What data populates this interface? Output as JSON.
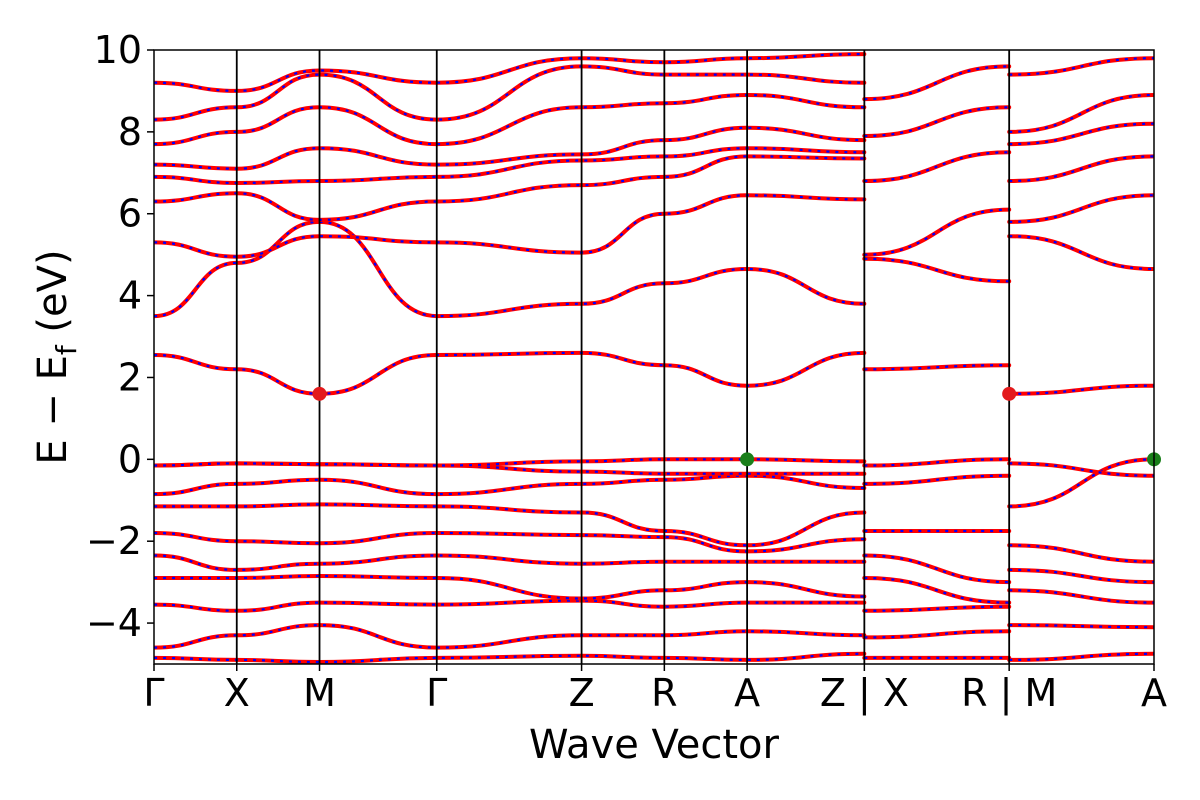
{
  "chart_data": {
    "type": "line",
    "title": "",
    "xlabel": "Wave Vector",
    "ylabel_main": "E − E",
    "ylabel_sub": "f",
    "ylabel_unit": " (eV)",
    "ylim": [
      -5,
      10
    ],
    "yticks": [
      -4,
      -2,
      0,
      2,
      4,
      6,
      8,
      10
    ],
    "ytick_labels": [
      "−4",
      "−2",
      "0",
      "2",
      "4",
      "6",
      "8",
      "10"
    ],
    "kpath": [
      0,
      0.6,
      1.2,
      2.05,
      3.1,
      3.7,
      4.3,
      5.15,
      5.15,
      6.2,
      6.2,
      7.25
    ],
    "xtick_labels": [
      "Γ",
      "X",
      "M",
      "Γ",
      "Z",
      "R",
      "A",
      "Z | X",
      "R | M",
      "A"
    ],
    "xtick_positions": [
      0,
      0.6,
      1.2,
      2.05,
      3.1,
      3.7,
      4.3,
      5.15,
      6.2,
      7.25
    ],
    "series_colors": {
      "band": "#ff0000",
      "band_overlay": "#0000ff",
      "cbm": "#e31a1c",
      "vbm": "#1a7f1a"
    },
    "bands": [
      {
        "segment": "Γ-X-M-Γ-Z-R-A-Z",
        "x": [
          0,
          0.6,
          1.2,
          2.05,
          3.1,
          3.7,
          4.3,
          5.15
        ],
        "y": [
          -4.85,
          -4.9,
          -4.95,
          -4.85,
          -4.8,
          -4.85,
          -4.9,
          -4.75
        ]
      },
      {
        "segment": "Γ-X-M-Γ-Z-R-A-Z",
        "x": [
          0,
          0.6,
          1.2,
          2.05,
          3.1,
          3.7,
          4.3,
          5.15
        ],
        "y": [
          -4.6,
          -4.3,
          -4.05,
          -4.6,
          -4.3,
          -4.3,
          -4.2,
          -4.3
        ]
      },
      {
        "segment": "Γ-X-M-Γ-Z-R-A-Z",
        "x": [
          0,
          0.6,
          1.2,
          2.05,
          3.1,
          3.7,
          4.3,
          5.15
        ],
        "y": [
          -3.55,
          -3.7,
          -3.5,
          -3.55,
          -3.45,
          -3.6,
          -3.5,
          -3.5
        ]
      },
      {
        "segment": "Γ-X-M-Γ-Z-R-A-Z",
        "x": [
          0,
          0.6,
          1.2,
          2.05,
          3.1,
          3.7,
          4.3,
          5.15
        ],
        "y": [
          -2.9,
          -2.9,
          -2.85,
          -2.9,
          -3.4,
          -3.2,
          -3.0,
          -3.35
        ]
      },
      {
        "segment": "Γ-X-M-Γ-Z-R-A-Z",
        "x": [
          0,
          0.6,
          1.2,
          2.05,
          3.1,
          3.7,
          4.3,
          5.15
        ],
        "y": [
          -2.35,
          -2.7,
          -2.55,
          -2.35,
          -2.55,
          -2.5,
          -2.5,
          -2.5
        ]
      },
      {
        "segment": "Γ-X-M-Γ-Z-R-A-Z",
        "x": [
          0,
          0.6,
          1.2,
          2.05,
          3.1,
          3.7,
          4.3,
          5.15
        ],
        "y": [
          -1.8,
          -2.0,
          -2.05,
          -1.8,
          -1.85,
          -1.9,
          -2.25,
          -1.95
        ]
      },
      {
        "segment": "Γ-X-M-Γ-Z-R-A-Z",
        "x": [
          0,
          0.6,
          1.2,
          2.05,
          3.1,
          3.7,
          4.3,
          5.15
        ],
        "y": [
          -1.15,
          -1.15,
          -1.1,
          -1.15,
          -1.3,
          -1.75,
          -2.1,
          -1.3
        ]
      },
      {
        "segment": "Γ-X-M-Γ-Z-R-A-Z",
        "x": [
          0,
          0.6,
          1.2,
          2.05,
          3.1,
          3.7,
          4.3,
          5.15
        ],
        "y": [
          -0.85,
          -0.6,
          -0.5,
          -0.85,
          -0.6,
          -0.5,
          -0.4,
          -0.7
        ]
      },
      {
        "segment": "Γ-X-M-Γ-Z-R-A-Z",
        "x": [
          0,
          0.6,
          1.2,
          2.05,
          3.1,
          3.7,
          4.3,
          5.15
        ],
        "y": [
          -0.15,
          -0.1,
          -0.12,
          -0.15,
          -0.3,
          -0.35,
          -0.35,
          -0.35
        ]
      },
      {
        "segment": "Γ-X-M-Γ-Z-R-A-Z",
        "x": [
          0,
          0.6,
          1.2,
          2.05,
          3.1,
          3.7,
          4.3,
          5.15
        ],
        "y": [
          -0.15,
          -0.1,
          -0.12,
          -0.15,
          -0.05,
          0.0,
          0.0,
          -0.05
        ]
      },
      {
        "segment": "Γ-X-M-Γ-Z-R-A-Z",
        "x": [
          0,
          0.6,
          1.2,
          2.05,
          3.1,
          3.7,
          4.3,
          5.15
        ],
        "y": [
          2.55,
          2.2,
          1.6,
          2.55,
          2.6,
          2.3,
          1.8,
          2.6
        ]
      },
      {
        "segment": "Γ-X-M-Γ-Z-R-A-Z",
        "x": [
          0,
          0.6,
          1.2,
          2.05,
          3.1,
          3.7,
          4.3,
          5.15
        ],
        "y": [
          3.5,
          4.8,
          5.8,
          3.5,
          3.8,
          4.3,
          4.65,
          3.8
        ]
      },
      {
        "segment": "Γ-X-M-Γ-Z-R-A-Z",
        "x": [
          0,
          0.6,
          1.2,
          2.05,
          3.1,
          3.7,
          4.3,
          5.15
        ],
        "y": [
          5.3,
          4.95,
          5.45,
          5.3,
          5.05,
          6.0,
          6.45,
          6.35
        ]
      },
      {
        "segment": "Γ-X-M-Γ-Z-R-A-Z",
        "x": [
          0,
          0.6,
          1.2,
          2.05,
          3.1,
          3.7,
          4.3,
          5.15
        ],
        "y": [
          6.3,
          6.5,
          5.85,
          6.3,
          6.7,
          6.9,
          7.4,
          7.35
        ]
      },
      {
        "segment": "Γ-X-M-Γ-Z-R-A-Z",
        "x": [
          0,
          0.6,
          1.2,
          2.05,
          3.1,
          3.7,
          4.3,
          5.15
        ],
        "y": [
          6.9,
          6.75,
          6.8,
          6.9,
          7.3,
          7.4,
          7.6,
          7.5
        ]
      },
      {
        "segment": "Γ-X-M-Γ-Z-R-A-Z",
        "x": [
          0,
          0.6,
          1.2,
          2.05,
          3.1,
          3.7,
          4.3,
          5.15
        ],
        "y": [
          7.2,
          7.1,
          7.6,
          7.2,
          7.45,
          7.8,
          8.1,
          7.8
        ]
      },
      {
        "segment": "Γ-X-M-Γ-Z-R-A-Z",
        "x": [
          0,
          0.6,
          1.2,
          2.05,
          3.1,
          3.7,
          4.3,
          5.15
        ],
        "y": [
          7.7,
          8.0,
          8.6,
          7.7,
          8.6,
          8.7,
          8.9,
          8.6
        ]
      },
      {
        "segment": "Γ-X-M-Γ-Z-R-A-Z",
        "x": [
          0,
          0.6,
          1.2,
          2.05,
          3.1,
          3.7,
          4.3,
          5.15
        ],
        "y": [
          8.3,
          8.6,
          9.4,
          8.3,
          9.6,
          9.4,
          9.4,
          9.2
        ]
      },
      {
        "segment": "Γ-X-M-Γ-Z-R-A-Z",
        "x": [
          0,
          0.6,
          1.2,
          2.05,
          3.1,
          3.7,
          4.3,
          5.15
        ],
        "y": [
          9.2,
          9.0,
          9.5,
          9.2,
          9.8,
          9.7,
          9.8,
          9.9
        ]
      },
      {
        "segment": "X-R",
        "x": [
          5.15,
          6.2
        ],
        "y": [
          -4.85,
          -4.85
        ]
      },
      {
        "segment": "X-R",
        "x": [
          5.15,
          6.2
        ],
        "y": [
          -4.35,
          -4.2
        ]
      },
      {
        "segment": "X-R",
        "x": [
          5.15,
          6.2
        ],
        "y": [
          -3.7,
          -3.6
        ]
      },
      {
        "segment": "X-R",
        "x": [
          5.15,
          6.2
        ],
        "y": [
          -2.9,
          -3.5
        ]
      },
      {
        "segment": "X-R",
        "x": [
          5.15,
          6.2
        ],
        "y": [
          -2.35,
          -3.0
        ]
      },
      {
        "segment": "X-R",
        "x": [
          5.15,
          6.2
        ],
        "y": [
          -1.75,
          -1.75
        ]
      },
      {
        "segment": "X-R",
        "x": [
          5.15,
          6.2
        ],
        "y": [
          -0.6,
          -0.4
        ]
      },
      {
        "segment": "X-R",
        "x": [
          5.15,
          6.2
        ],
        "y": [
          -0.15,
          0.0
        ]
      },
      {
        "segment": "X-R",
        "x": [
          5.15,
          6.2
        ],
        "y": [
          2.2,
          2.3
        ]
      },
      {
        "segment": "X-R",
        "x": [
          5.15,
          6.2
        ],
        "y": [
          4.9,
          4.35
        ]
      },
      {
        "segment": "X-R",
        "x": [
          5.15,
          6.2
        ],
        "y": [
          5.0,
          6.1
        ]
      },
      {
        "segment": "X-R",
        "x": [
          5.15,
          6.2
        ],
        "y": [
          6.8,
          7.5
        ]
      },
      {
        "segment": "X-R",
        "x": [
          5.15,
          6.2
        ],
        "y": [
          7.9,
          8.6
        ]
      },
      {
        "segment": "X-R",
        "x": [
          5.15,
          6.2
        ],
        "y": [
          8.8,
          9.6
        ]
      },
      {
        "segment": "M-A",
        "x": [
          6.2,
          7.25
        ],
        "y": [
          -4.9,
          -4.75
        ]
      },
      {
        "segment": "M-A",
        "x": [
          6.2,
          7.25
        ],
        "y": [
          -4.05,
          -4.1
        ]
      },
      {
        "segment": "M-A",
        "x": [
          6.2,
          7.25
        ],
        "y": [
          -3.2,
          -3.5
        ]
      },
      {
        "segment": "M-A",
        "x": [
          6.2,
          7.25
        ],
        "y": [
          -2.7,
          -3.0
        ]
      },
      {
        "segment": "M-A",
        "x": [
          6.2,
          7.25
        ],
        "y": [
          -2.1,
          -2.5
        ]
      },
      {
        "segment": "M-A",
        "x": [
          6.2,
          7.25
        ],
        "y": [
          -1.15,
          0.0
        ]
      },
      {
        "segment": "M-A",
        "x": [
          6.2,
          7.25
        ],
        "y": [
          -0.1,
          -0.4
        ]
      },
      {
        "segment": "M-A",
        "x": [
          6.2,
          7.25
        ],
        "y": [
          1.6,
          1.8
        ]
      },
      {
        "segment": "M-A",
        "x": [
          6.2,
          7.25
        ],
        "y": [
          5.45,
          4.65
        ]
      },
      {
        "segment": "M-A",
        "x": [
          6.2,
          7.25
        ],
        "y": [
          5.8,
          6.45
        ]
      },
      {
        "segment": "M-A",
        "x": [
          6.2,
          7.25
        ],
        "y": [
          6.8,
          7.4
        ]
      },
      {
        "segment": "M-A",
        "x": [
          6.2,
          7.25
        ],
        "y": [
          7.7,
          8.2
        ]
      },
      {
        "segment": "M-A",
        "x": [
          6.2,
          7.25
        ],
        "y": [
          8.0,
          8.9
        ]
      },
      {
        "segment": "M-A",
        "x": [
          6.2,
          7.25
        ],
        "y": [
          9.4,
          9.8
        ]
      }
    ],
    "markers": [
      {
        "name": "CBM",
        "x": 1.2,
        "y": 1.6,
        "color": "#e31a1c"
      },
      {
        "name": "CBM",
        "x": 6.2,
        "y": 1.6,
        "color": "#e31a1c"
      },
      {
        "name": "VBM",
        "x": 4.3,
        "y": 0.0,
        "color": "#1a7f1a"
      },
      {
        "name": "VBM",
        "x": 7.25,
        "y": 0.0,
        "color": "#1a7f1a"
      }
    ]
  }
}
